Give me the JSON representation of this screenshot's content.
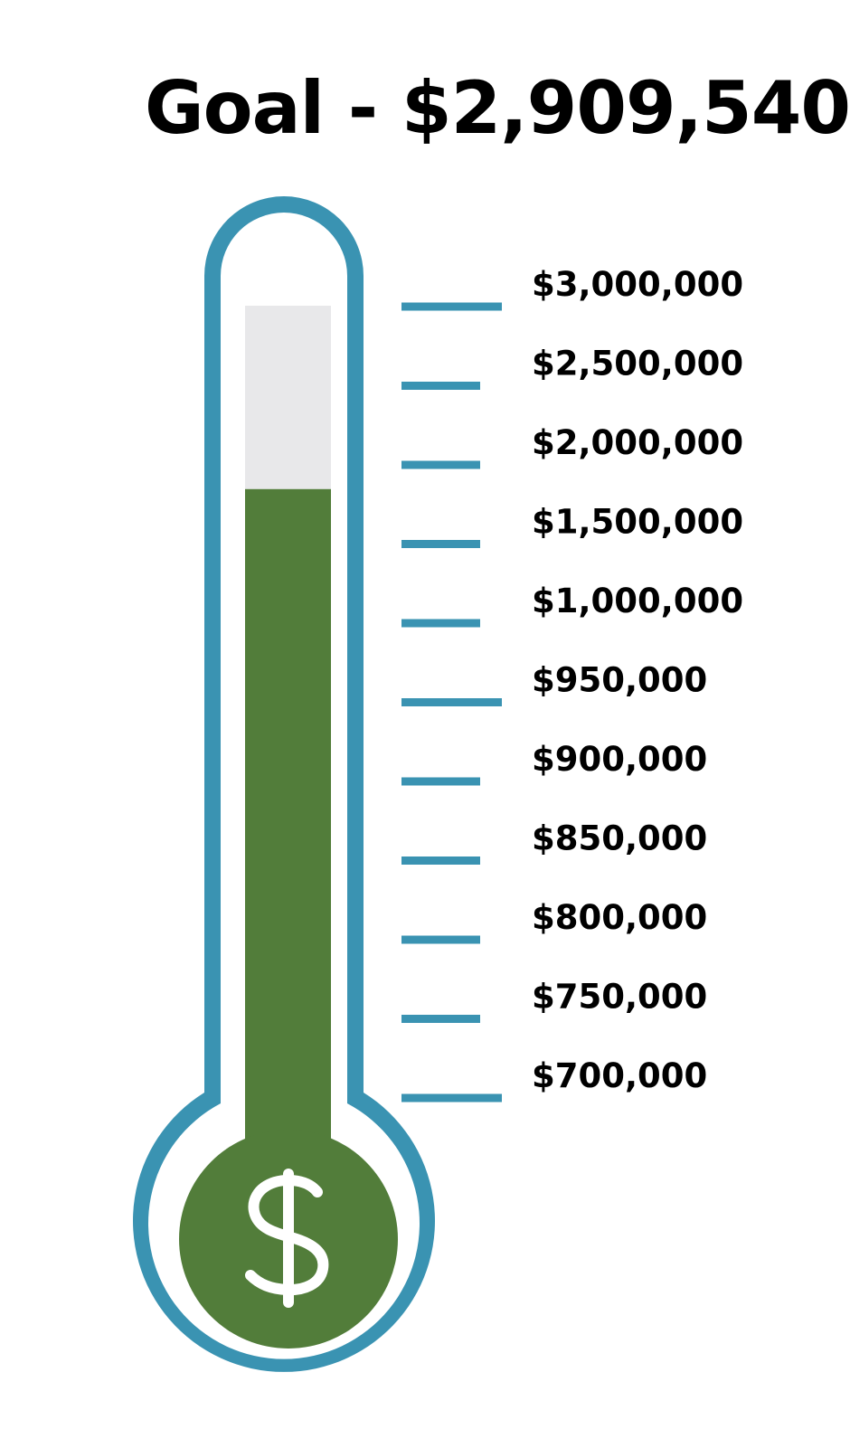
{
  "title": "Goal - $2,909,540",
  "colors": {
    "outline": "#3a93b2",
    "fill": "#527d3a",
    "empty": "#e8e8ea",
    "icon": "#ffffff"
  },
  "chart_data": {
    "type": "thermometer",
    "title": "Goal - $2,909,540",
    "goal": 2909540,
    "fill_fraction": 0.78,
    "ticks": [
      {
        "label": "$3,000,000",
        "major": true
      },
      {
        "label": "$2,500,000",
        "major": false
      },
      {
        "label": "$2,000,000",
        "major": false
      },
      {
        "label": "$1,500,000",
        "major": false
      },
      {
        "label": "$1,000,000",
        "major": false
      },
      {
        "label": "$950,000",
        "major": true
      },
      {
        "label": "$900,000",
        "major": false
      },
      {
        "label": "$850,000",
        "major": false
      },
      {
        "label": "$800,000",
        "major": false
      },
      {
        "label": "$750,000",
        "major": false
      },
      {
        "label": "$700,000",
        "major": true
      }
    ],
    "bulb_icon": "dollar-sign-icon",
    "bulb_symbol": "$"
  }
}
